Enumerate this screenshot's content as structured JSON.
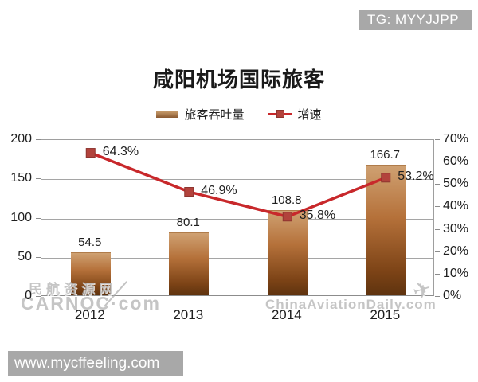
{
  "badges": {
    "tg": "TG: MYYJJPP",
    "site": "www.mycffeeling.com"
  },
  "watermarks": {
    "left_line1": "民航资源网",
    "left_line2": "CARNOC·com",
    "right": "ChinaAviationDaily.com",
    "plane_icon": "✈"
  },
  "chart_data": {
    "type": "bar+line combo",
    "title": "咸阳机场国际旅客",
    "categories": [
      "2012",
      "2013",
      "2014",
      "2015"
    ],
    "series": [
      {
        "name": "旅客吞吐量",
        "type": "bar",
        "axis": "left",
        "values": [
          54.5,
          80.1,
          108.8,
          166.7
        ],
        "labels": [
          "54.5",
          "80.1",
          "108.8",
          "166.7"
        ]
      },
      {
        "name": "增速",
        "type": "line",
        "axis": "right",
        "values": [
          64.3,
          46.9,
          35.8,
          53.2
        ],
        "labels": [
          "64.3%",
          "46.9%",
          "35.8%",
          "53.2%"
        ]
      }
    ],
    "left_axis": {
      "min": 0,
      "max": 200,
      "step": 50,
      "ticks": [
        "200",
        "150",
        "100",
        "50",
        "0"
      ]
    },
    "right_axis": {
      "min": 0,
      "max": 70,
      "step": 10,
      "ticks": [
        "70%",
        "60%",
        "50%",
        "40%",
        "30%",
        "20%",
        "10%",
        "0%"
      ]
    },
    "legend_position": "top-center",
    "grid": "horizontal gridlines at left-axis 50-steps",
    "colors": {
      "bar_gradient_top": "#cfa172",
      "bar_gradient_bottom": "#5f330f",
      "line": "#c8282b",
      "marker": "#b2433c",
      "axis": "#9e9e9e",
      "badge_bg": "#a8a8a8",
      "title_text": "#1a1a1a"
    }
  }
}
